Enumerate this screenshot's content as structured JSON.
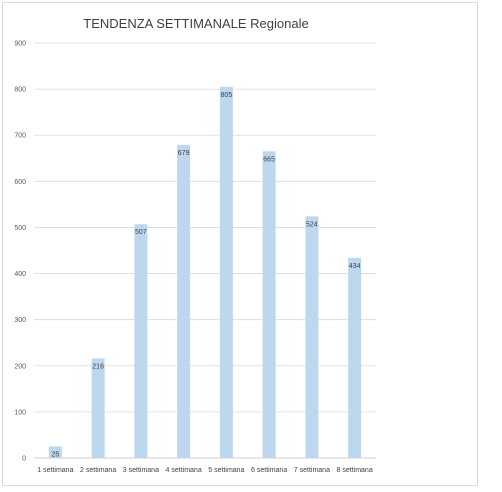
{
  "chart_data": {
    "type": "bar",
    "title": "TENDENZA SETTIMANALE Regionale",
    "categories": [
      "1 settimana",
      "2 settimana",
      "3 settimana",
      "4 settimana",
      "5 settimana",
      "6 settimana",
      "7 settimana",
      "8 settimana"
    ],
    "values": [
      25,
      216,
      507,
      679,
      805,
      665,
      524,
      434
    ],
    "ylim": [
      0,
      900
    ],
    "yticks": [
      0,
      100,
      200,
      300,
      400,
      500,
      600,
      700,
      800,
      900
    ],
    "grid": true,
    "bar_color": "#bdd7ee",
    "grid_color": "#d9d9d9"
  }
}
